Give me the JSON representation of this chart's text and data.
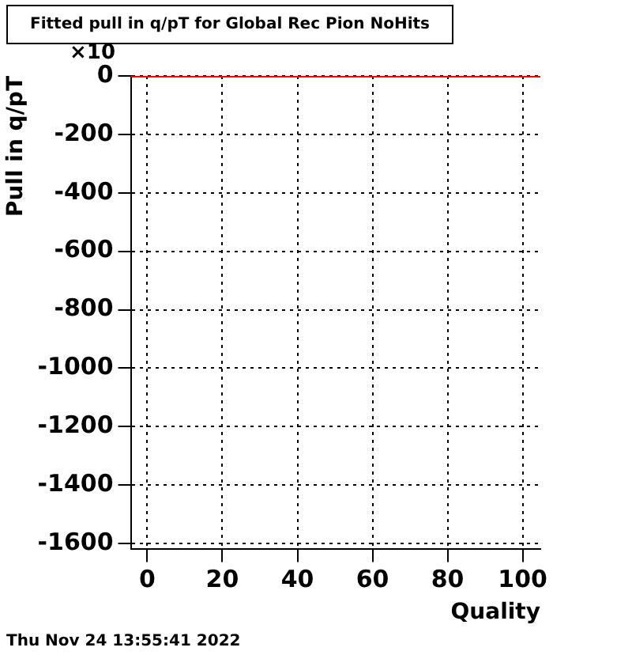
{
  "chart_data": {
    "type": "line",
    "title": "Fitted pull in q/pT for Global Rec Pion NoHits",
    "xlabel": "Quality",
    "ylabel": "Pull in q/pT",
    "annotations": [
      "×10",
      "Thu Nov 24 13:55:41 2022"
    ],
    "x": [
      -4.4,
      104.7
    ],
    "series": [
      {
        "color": "#ff0000",
        "values": [
          0,
          0
        ]
      }
    ],
    "xlim": [
      -4.4,
      104.7
    ],
    "xticks": [
      0,
      20,
      40,
      60,
      80,
      100
    ],
    "ylim": [
      -1620,
      0
    ],
    "yticks": [
      0,
      -200,
      -400,
      -600,
      -800,
      -1000,
      -1200,
      -1400,
      -1600
    ],
    "grid": true,
    "legend": false,
    "marker": "none",
    "line_style": "solid"
  }
}
